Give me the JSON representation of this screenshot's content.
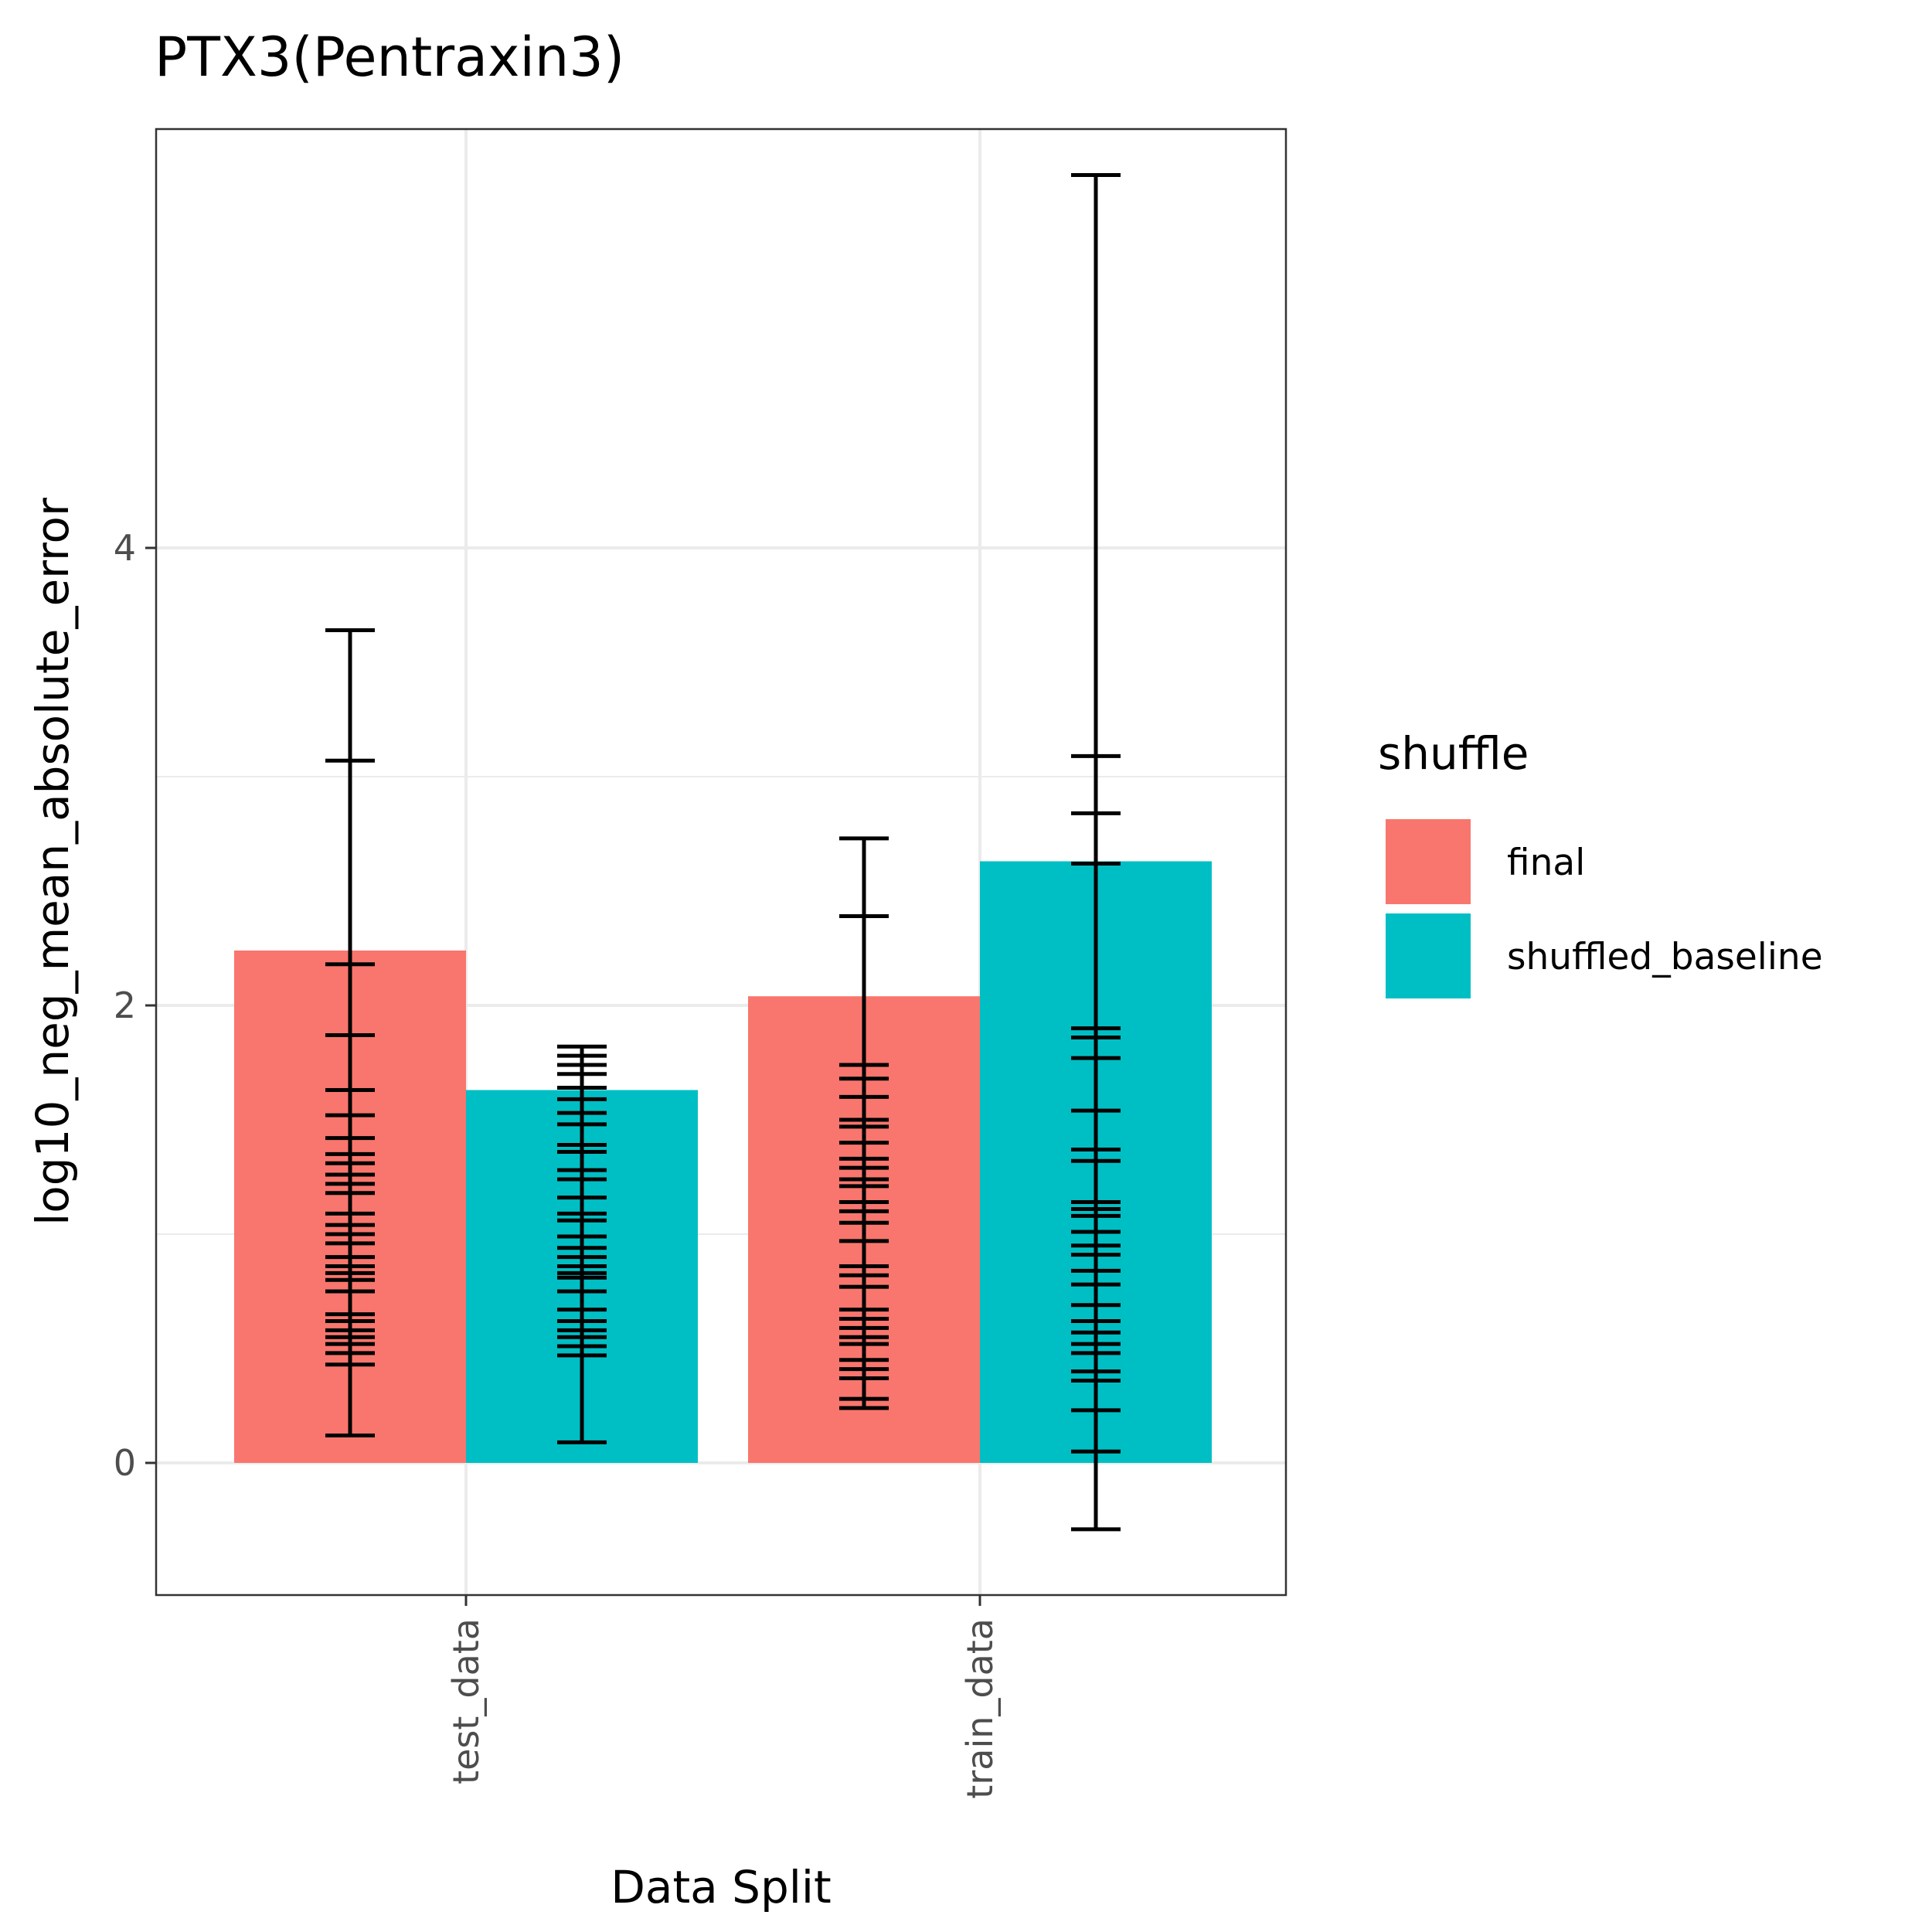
{
  "chart_data": {
    "type": "bar",
    "title": "PTX3(Pentraxin3)",
    "xlabel": "Data Split",
    "ylabel": "log10_neg_mean_absolute_error",
    "categories": [
      "test_data",
      "train_data"
    ],
    "ylim": [
      -0.58,
      4.74
    ],
    "yticks": [
      0,
      2,
      4
    ],
    "grid": true,
    "legend": {
      "title": "shuffle",
      "position": "right"
    },
    "series": [
      {
        "name": "final",
        "color": "#F8766D",
        "values": [
          2.24,
          2.04
        ],
        "errorbar_caps": [
          [
            0.12,
            0.43,
            0.48,
            0.52,
            0.55,
            0.58,
            0.62,
            0.65,
            0.75,
            0.8,
            0.83,
            0.86,
            0.9,
            0.96,
            1.0,
            1.04,
            1.09,
            1.18,
            1.22,
            1.26,
            1.31,
            1.35,
            1.42,
            1.52,
            1.63,
            1.87,
            2.18,
            3.07,
            3.64
          ],
          [
            0.24,
            0.28,
            0.37,
            0.41,
            0.45,
            0.52,
            0.55,
            0.59,
            0.63,
            0.67,
            0.77,
            0.82,
            0.86,
            0.97,
            1.05,
            1.1,
            1.14,
            1.21,
            1.24,
            1.29,
            1.33,
            1.4,
            1.47,
            1.5,
            1.6,
            1.68,
            1.74,
            2.39,
            2.73
          ]
        ]
      },
      {
        "name": "shuffled_baseline",
        "color": "#00BFC4",
        "values": [
          1.63,
          2.63
        ],
        "errorbar_caps": [
          [
            0.09,
            0.47,
            0.51,
            0.55,
            0.58,
            0.62,
            0.67,
            0.75,
            0.81,
            0.83,
            0.86,
            0.9,
            0.94,
            0.99,
            1.06,
            1.09,
            1.16,
            1.24,
            1.28,
            1.36,
            1.39,
            1.48,
            1.53,
            1.59,
            1.64,
            1.7,
            1.74,
            1.78,
            1.82
          ],
          [
            -0.29,
            0.05,
            0.23,
            0.36,
            0.4,
            0.48,
            0.52,
            0.57,
            0.62,
            0.69,
            0.78,
            0.84,
            0.91,
            0.95,
            1.01,
            1.08,
            1.11,
            1.14,
            1.32,
            1.37,
            1.54,
            1.77,
            1.86,
            1.9,
            2.62,
            2.84,
            3.09,
            5.63
          ]
        ]
      }
    ]
  }
}
